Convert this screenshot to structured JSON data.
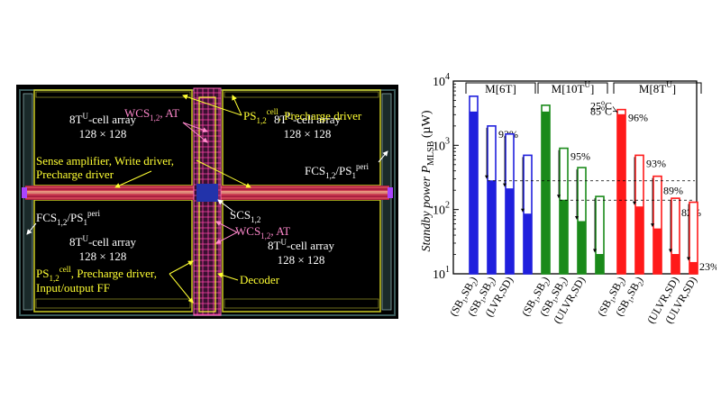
{
  "layout_figure": {
    "arrays": [
      {
        "name_main": "8T",
        "name_sup": "U",
        "name_rest": "-cell array",
        "size": "128 × 128"
      },
      {
        "name_main": "8T",
        "name_sup": "U",
        "name_rest": "-cell array",
        "size": "128 × 128"
      },
      {
        "name_main": "8T",
        "name_sup": "U",
        "name_rest": "-cell array",
        "size": "128 × 128"
      },
      {
        "name_main": "8T",
        "name_sup": "U",
        "name_rest": "-cell array",
        "size": "128 × 128"
      }
    ],
    "labels": {
      "wcs_top": {
        "main": "WCS",
        "sub": "1,2",
        "rest": ", AT"
      },
      "wcs_bottom": {
        "main": "WCS",
        "sub": "1,2",
        "rest": ", AT"
      },
      "ps_top": {
        "main": "PS",
        "sub": "1,2",
        "sup": "cell",
        "rest": ", Precharge driver"
      },
      "ps_bottom": {
        "main": "PS",
        "sub": "1,2",
        "sup": "cell",
        "rest": ", Precharge driver,"
      },
      "ps_bottom_line2": "Input/output FF",
      "sense_line1": "Sense amplifier, Write driver,",
      "sense_line2": "Precharge driver",
      "fcs_right": {
        "main": "FCS",
        "sub": "1,2",
        "mid": "/PS",
        "sub2": "1",
        "sup2": "peri"
      },
      "fcs_left": {
        "main": "FCS",
        "sub": "1,2",
        "mid": "/PS",
        "sub2": "1",
        "sup2": "peri"
      },
      "scs": {
        "main": "SCS",
        "sub": "1,2"
      },
      "decoder": "Decoder"
    },
    "colors": {
      "background": "#000000",
      "yellow": "#ffff33",
      "pink": "#ff88cc",
      "white": "#ffffff"
    }
  },
  "chart_data": {
    "type": "bar",
    "ylabel": "Standby power P",
    "ylabel_sub": "MLSB",
    "ylabel_unit": " (µW)",
    "yscale": "log",
    "ylim": [
      10,
      10000
    ],
    "yticks": [
      {
        "value": 10,
        "base": "10",
        "exp": "1"
      },
      {
        "value": 100,
        "base": "10",
        "exp": "2"
      },
      {
        "value": 1000,
        "base": "10",
        "exp": "3"
      },
      {
        "value": 10000,
        "base": "10",
        "exp": "4"
      }
    ],
    "groups": [
      {
        "name": "M[6T]",
        "name_main": "M[6T",
        "name_sup": "",
        "color": "#1f1fdd",
        "bars": [
          {
            "label_a": "SB",
            "sub_a": "1",
            "label_b": "SB",
            "sub_b": "2",
            "value_25c": 3300,
            "value_85c": 5800
          },
          {
            "label_a": "SB",
            "sub_a": "1",
            "label_b": "SB",
            "sub_b": "2",
            "value_25c": 280,
            "value_85c": 2000,
            "reduction": "92%"
          },
          {
            "label_a": "LVR",
            "sub_a": "",
            "label_b": "SD",
            "sub_b": "",
            "value_25c": 210,
            "value_85c": 1500
          },
          {
            "label_a": "",
            "sub_a": "",
            "label_b": "",
            "sub_b": "",
            "value_25c": 85,
            "value_85c": 700
          }
        ]
      },
      {
        "name": "M[10TU]",
        "name_main": "M[10T",
        "name_sup": "U",
        "color": "#1a8a1a",
        "bars": [
          {
            "label_a": "SB",
            "sub_a": "1",
            "label_b": "SB",
            "sub_b": "2",
            "value_25c": 3300,
            "value_85c": 4200
          },
          {
            "label_a": "SB",
            "sub_a": "1",
            "label_b": "SB",
            "sub_b": "2",
            "value_25c": 140,
            "value_85c": 900,
            "reduction": "95%"
          },
          {
            "label_a": "ULVR",
            "sub_a": "",
            "label_b": "SD",
            "sub_b": "",
            "value_25c": 65,
            "value_85c": 450
          },
          {
            "label_a": "",
            "sub_a": "",
            "label_b": "",
            "sub_b": "",
            "value_25c": 20,
            "value_85c": 160
          }
        ]
      },
      {
        "name": "M[8TU]",
        "name_main": "M[8T",
        "name_sup": "U",
        "color": "#ff1a1a",
        "bars": [
          {
            "label_a": "SB",
            "sub_a": "1",
            "label_b": "SB",
            "sub_b": "2",
            "value_25c": 3000,
            "value_85c": 3600,
            "reduction": "96%"
          },
          {
            "label_a": "SB",
            "sub_a": "1",
            "label_b": "SB",
            "sub_b": "2",
            "value_25c": 110,
            "value_85c": 700,
            "reduction": "93%"
          },
          {
            "label_a": "",
            "sub_a": "",
            "label_b": "",
            "sub_b": "",
            "value_25c": 50,
            "value_85c": 330,
            "reduction": "89%"
          },
          {
            "label_a": "ULVR",
            "sub_a": "",
            "label_b": "SD",
            "sub_b": "",
            "value_25c": 20,
            "value_85c": 150,
            "reduction": "82%"
          },
          {
            "label_a": "ULVR",
            "sub_a": "",
            "label_b": "SD",
            "sub_b": "",
            "value_25c": 15,
            "value_85c": 130,
            "reduction": "23%"
          }
        ]
      }
    ],
    "annotations": {
      "t85": {
        "main": "85",
        "sup": "o",
        "rest": "C"
      },
      "t25": {
        "main": "25",
        "sup": "o",
        "rest": "C"
      }
    },
    "dashed_lines": [
      280,
      140
    ]
  }
}
